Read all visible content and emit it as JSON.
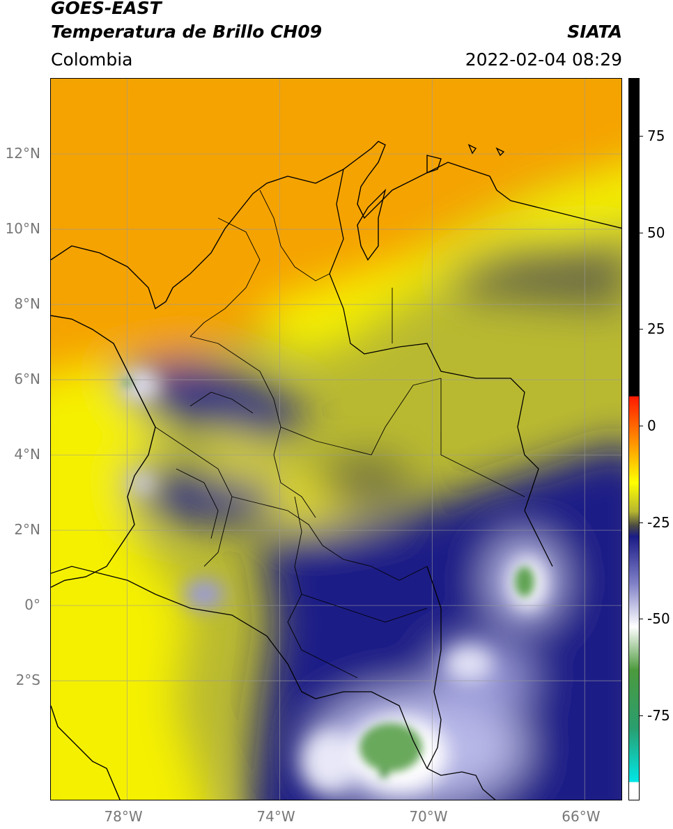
{
  "header": {
    "satellite": "GOES-EAST",
    "product": "Temperatura de Brillo CH09",
    "organization": "SIATA",
    "region": "Colombia",
    "datetime": "2022-02-04 08:29"
  },
  "map": {
    "lon_labels": [
      "78°W",
      "74°W",
      "70°W",
      "66°W"
    ],
    "lat_labels": [
      "12°N",
      "10°N",
      "8°N",
      "6°N",
      "4°N",
      "2°N",
      "0°",
      "2°S"
    ],
    "lon_values": [
      -78,
      -74,
      -70,
      -66
    ],
    "lat_values": [
      12,
      10,
      8,
      6,
      4,
      2,
      0,
      -2
    ],
    "lon_range": [
      -80,
      -65
    ],
    "lat_range": [
      -5.2,
      14
    ],
    "gridlines": true,
    "colors": {
      "warm_orange": "#f5a300",
      "yellow": "#f5f000",
      "olive": "#b9b931",
      "dark_olive": "#5f5f3c",
      "navy": "#1b1b87",
      "lavender": "#b8b8e8",
      "white": "#ffffff",
      "green": "#4f9a40"
    }
  },
  "colorbar": {
    "tick_labels": [
      "75",
      "50",
      "25",
      "0",
      "-25",
      "-50",
      "-75"
    ],
    "tick_values": [
      75,
      50,
      25,
      0,
      -25,
      -50,
      -75
    ],
    "range": [
      -97,
      90
    ]
  }
}
